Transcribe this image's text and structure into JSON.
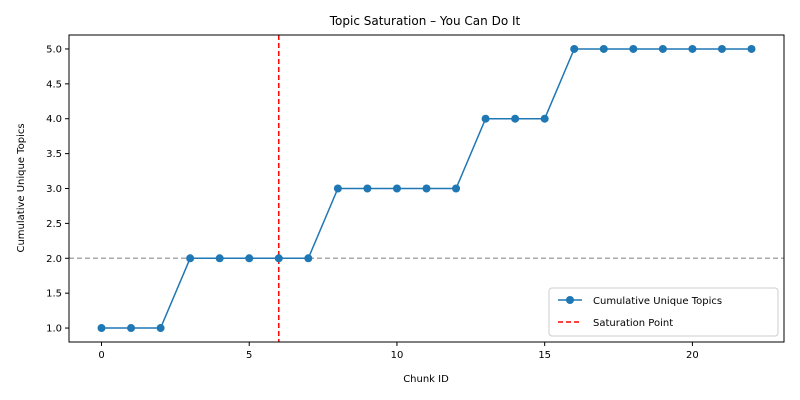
{
  "chart_data": {
    "type": "line",
    "title": "Topic Saturation – You Can Do It",
    "xlabel": "Chunk ID",
    "ylabel": "Cumulative Unique Topics",
    "xlim": [
      -1.1,
      23.1
    ],
    "ylim": [
      0.8,
      5.2
    ],
    "xticks": [
      0,
      5,
      10,
      15,
      20
    ],
    "yticks": [
      1.0,
      1.5,
      2.0,
      2.5,
      3.0,
      3.5,
      4.0,
      4.5,
      5.0
    ],
    "ytick_labels": [
      "1.0",
      "1.5",
      "2.0",
      "2.5",
      "3.0",
      "3.5",
      "4.0",
      "4.5",
      "5.0"
    ],
    "grid": false,
    "legend_position": "lower-right",
    "series": [
      {
        "name": "Cumulative Unique Topics",
        "color": "#1f77b4",
        "marker": "circle",
        "x": [
          0,
          1,
          2,
          3,
          4,
          5,
          6,
          7,
          8,
          9,
          10,
          11,
          12,
          13,
          14,
          15,
          16,
          17,
          18,
          19,
          20,
          21,
          22
        ],
        "y": [
          1,
          1,
          1,
          2,
          2,
          2,
          2,
          2,
          3,
          3,
          3,
          3,
          3,
          4,
          4,
          4,
          5,
          5,
          5,
          5,
          5,
          5,
          5
        ]
      }
    ],
    "reference_lines": [
      {
        "name": "Saturation Point",
        "orientation": "vertical",
        "value": 6,
        "color": "#ff0000",
        "style": "dashed",
        "in_legend": true
      },
      {
        "orientation": "horizontal",
        "value": 2,
        "color": "#aaaaaa",
        "style": "dashed",
        "in_legend": false
      }
    ]
  }
}
